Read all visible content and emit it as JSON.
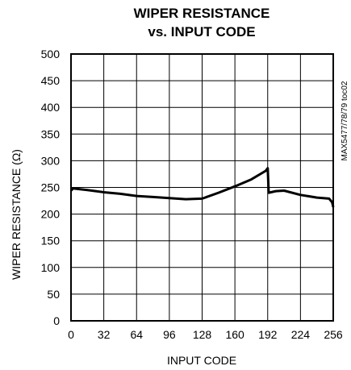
{
  "chart_data": {
    "type": "line",
    "title_line1": "WIPER RESISTANCE",
    "title_line2": "vs. INPUT CODE",
    "xlabel": "INPUT CODE",
    "ylabel": "WIPER RESISTANCE (Ω)",
    "side_note": "MAX5477/78/79 toc02",
    "xlim": [
      0,
      256
    ],
    "ylim": [
      0,
      500
    ],
    "x_ticks": [
      "0",
      "32",
      "64",
      "96",
      "128",
      "160",
      "192",
      "224",
      "256"
    ],
    "y_ticks": [
      "0",
      "50",
      "100",
      "150",
      "200",
      "250",
      "300",
      "350",
      "400",
      "450",
      "500"
    ],
    "grid": true,
    "series": [
      {
        "x": [
          0,
          2,
          16,
          32,
          48,
          64,
          80,
          96,
          112,
          128,
          144,
          160,
          176,
          190,
          192,
          193,
          200,
          208,
          224,
          240,
          252,
          255,
          256
        ],
        "y": [
          244,
          248,
          245,
          241,
          238,
          234,
          232,
          230,
          228,
          229,
          240,
          252,
          265,
          281,
          286,
          240,
          243,
          244,
          236,
          231,
          229,
          222,
          213
        ]
      }
    ]
  }
}
